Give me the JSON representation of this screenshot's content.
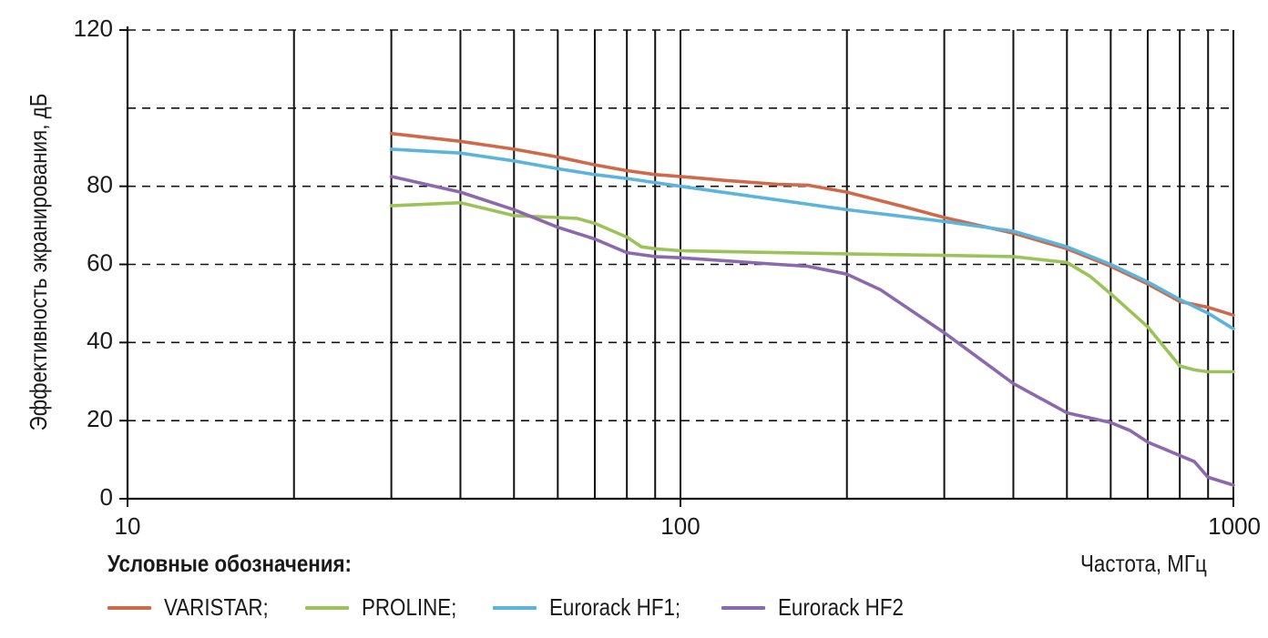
{
  "chart_data": {
    "type": "line",
    "ylabel": "Эффективность экранирования, дБ",
    "xlabel": "Частота, МГц",
    "x_scale": "log",
    "xlim": [
      10,
      1000
    ],
    "ylim": [
      0,
      120
    ],
    "x_ticks": [
      {
        "value": 10,
        "label": "10"
      },
      {
        "value": 100,
        "label": "100"
      },
      {
        "value": 1000,
        "label": "1000"
      }
    ],
    "y_ticks": [
      {
        "value": 0,
        "label": "0"
      },
      {
        "value": 20,
        "label": "20"
      },
      {
        "value": 40,
        "label": "40"
      },
      {
        "value": 60,
        "label": "60"
      },
      {
        "value": 80,
        "label": "80"
      },
      {
        "value": 120,
        "label": "120"
      }
    ],
    "y_gridlines": [
      20,
      40,
      60,
      80,
      100,
      120
    ],
    "x_gridlines": [
      20,
      30,
      40,
      50,
      60,
      70,
      80,
      90,
      100,
      200,
      300,
      400,
      500,
      600,
      700,
      800,
      900,
      1000
    ],
    "grid": true,
    "legend_title": "Условные обозначения:",
    "legend_placement": "bottom",
    "series": [
      {
        "name": "VARISTAR;",
        "color": "#d0694a",
        "x": [
          30,
          40,
          50,
          60,
          70,
          80,
          90,
          100,
          120,
          150,
          170,
          200,
          250,
          300,
          400,
          500,
          600,
          700,
          800,
          900,
          1000
        ],
        "y": [
          93.5,
          91.5,
          89.5,
          87.5,
          85.5,
          84,
          83,
          82.5,
          81.5,
          80.5,
          80.3,
          78.5,
          75,
          72,
          68,
          64,
          59.5,
          55,
          50.5,
          49,
          47
        ]
      },
      {
        "name": "PROLINE;",
        "color": "#9bc35a",
        "x": [
          30,
          40,
          50,
          60,
          65,
          70,
          80,
          85,
          90,
          100,
          150,
          200,
          300,
          400,
          500,
          550,
          600,
          700,
          800,
          850,
          900,
          1000
        ],
        "y": [
          75,
          75.8,
          72.5,
          72,
          71.8,
          70.5,
          67,
          64.5,
          64,
          63.5,
          63,
          62.7,
          62.3,
          62,
          60.5,
          57,
          52.5,
          44,
          34,
          33,
          32.5,
          32.5
        ]
      },
      {
        "name": "Eurorack HF1;",
        "color": "#5ab4dc",
        "x": [
          30,
          40,
          50,
          60,
          70,
          80,
          100,
          150,
          200,
          300,
          400,
          500,
          600,
          700,
          800,
          900,
          1000
        ],
        "y": [
          89.5,
          88.5,
          86.5,
          84.5,
          83,
          82,
          80,
          76.5,
          74,
          71,
          68.5,
          64.5,
          60,
          55.5,
          51,
          47.5,
          43.5
        ]
      },
      {
        "name": "Eurorack HF2",
        "color": "#8b69ac",
        "x": [
          30,
          40,
          50,
          60,
          70,
          80,
          90,
          100,
          150,
          170,
          200,
          230,
          300,
          400,
          500,
          600,
          650,
          700,
          850,
          900,
          1000
        ],
        "y": [
          82.5,
          78.5,
          74,
          69.5,
          66.5,
          63,
          62,
          61.7,
          60,
          59.5,
          57.5,
          53.5,
          42.5,
          29.5,
          22,
          19.5,
          17.5,
          14.5,
          9.5,
          5.5,
          3.5
        ]
      }
    ]
  }
}
